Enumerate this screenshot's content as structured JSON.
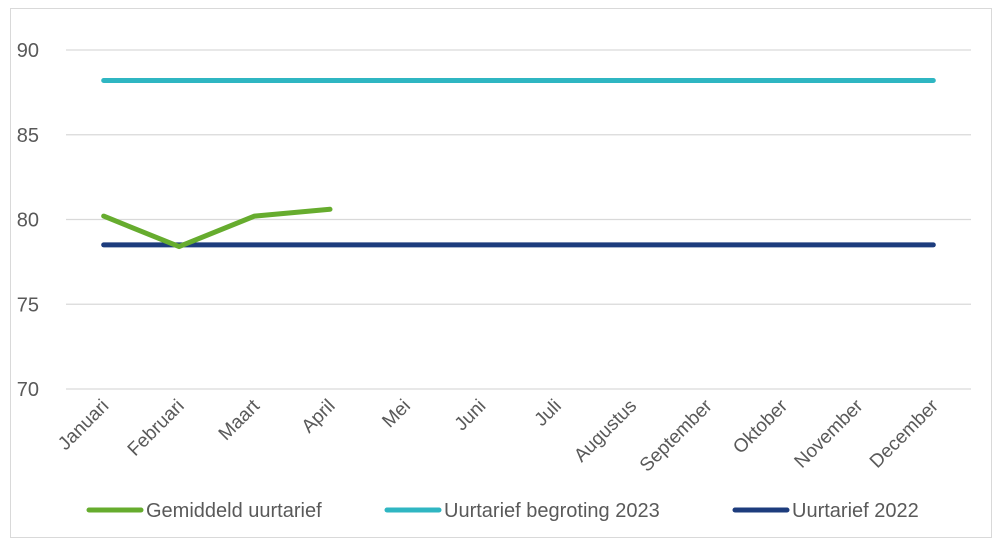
{
  "chart_data": {
    "type": "line",
    "title": "",
    "xlabel": "",
    "ylabel": "",
    "categories": [
      "Januari",
      "Februari",
      "Maart",
      "April",
      "Mei",
      "Juni",
      "Juli",
      "Augustus",
      "September",
      "Oktober",
      "November",
      "December"
    ],
    "ylim": [
      70,
      90
    ],
    "yticks": [
      90,
      85,
      80,
      75,
      70
    ],
    "grid": true,
    "legend_position": "bottom",
    "series": [
      {
        "name": "Gemiddeld uurtarief",
        "color": "#66ac2e",
        "values": [
          80.2,
          78.4,
          80.2,
          80.6,
          null,
          null,
          null,
          null,
          null,
          null,
          null,
          null
        ]
      },
      {
        "name": "Uurtarief begroting 2023",
        "color": "#2fb6c2",
        "values": [
          88.2,
          88.2,
          88.2,
          88.2,
          88.2,
          88.2,
          88.2,
          88.2,
          88.2,
          88.2,
          88.2,
          88.2
        ]
      },
      {
        "name": "Uurtarief 2022",
        "color": "#1d3c7d",
        "values": [
          78.5,
          78.5,
          78.5,
          78.5,
          78.5,
          78.5,
          78.5,
          78.5,
          78.5,
          78.5,
          78.5,
          78.5
        ]
      }
    ]
  }
}
